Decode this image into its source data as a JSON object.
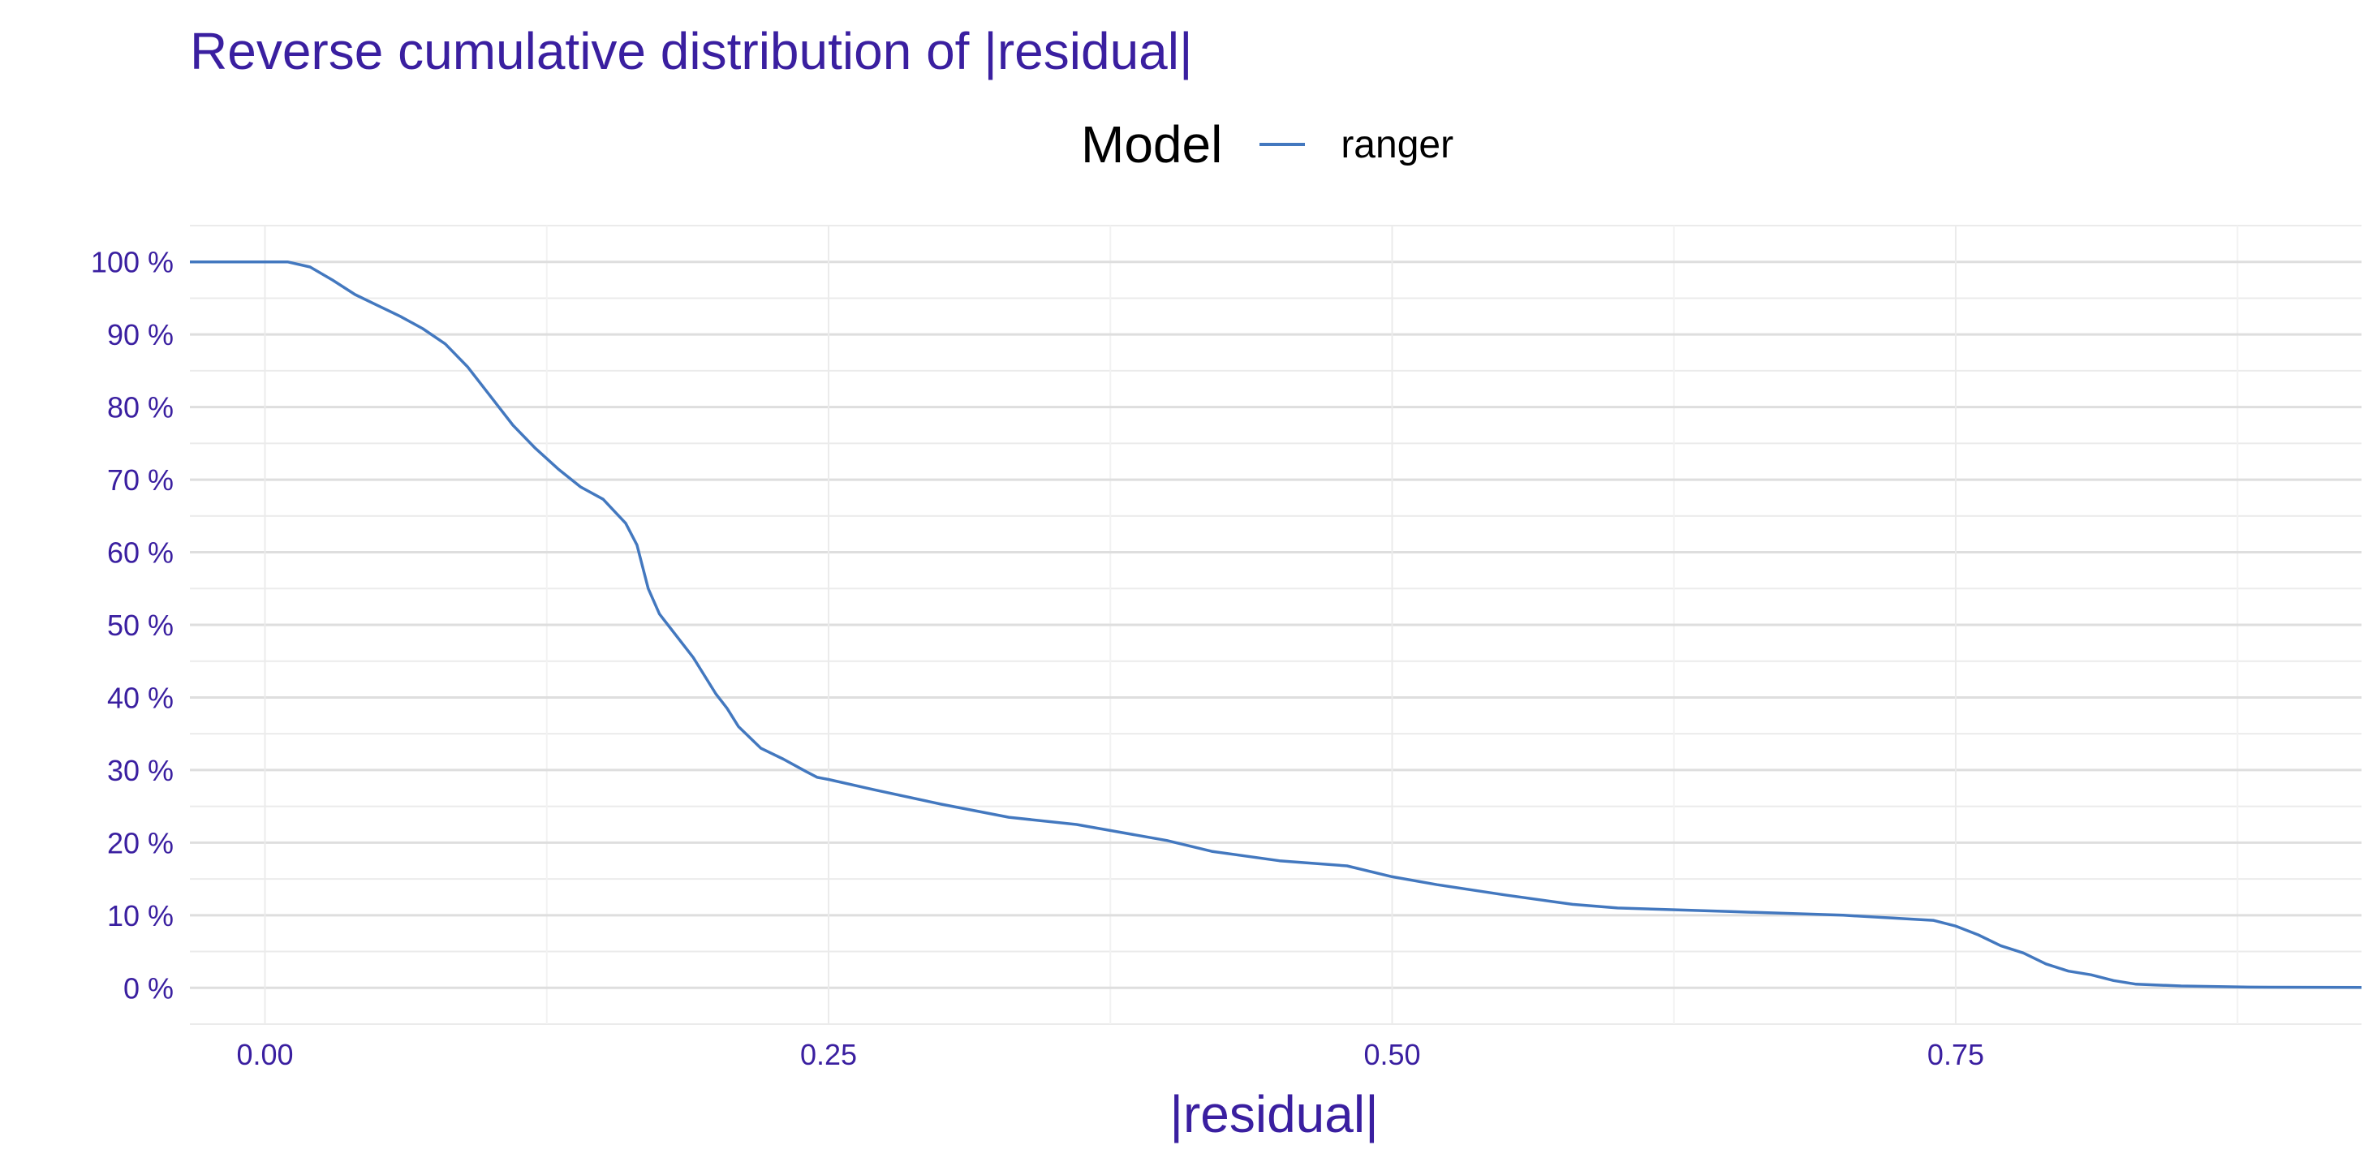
{
  "chart_data": {
    "type": "line",
    "title": "Reverse cumulative distribution of |residual|",
    "xlabel": "|residual|",
    "ylabel": "",
    "xlim": [
      -0.0333,
      0.93
    ],
    "ylim": [
      -5,
      105
    ],
    "xticks": [
      0.0,
      0.25,
      0.5,
      0.75
    ],
    "xtick_labels": [
      "0.00",
      "0.25",
      "0.50",
      "0.75"
    ],
    "yticks": [
      0,
      10,
      20,
      30,
      40,
      50,
      60,
      70,
      80,
      90,
      100
    ],
    "ytick_labels": [
      "0 %",
      "10 %",
      "20 %",
      "30 %",
      "40 %",
      "50 %",
      "60 %",
      "70 %",
      "80 %",
      "90 %",
      "100 %"
    ],
    "grid": true,
    "legend": {
      "title": "Model",
      "position": "top"
    },
    "series": [
      {
        "name": "ranger",
        "color": "#4378bf",
        "x": [
          -0.0333,
          0.0,
          0.01,
          0.02,
          0.03,
          0.04,
          0.05,
          0.06,
          0.07,
          0.08,
          0.09,
          0.1,
          0.11,
          0.12,
          0.13,
          0.14,
          0.15,
          0.16,
          0.165,
          0.17,
          0.175,
          0.18,
          0.19,
          0.2,
          0.205,
          0.21,
          0.22,
          0.23,
          0.24,
          0.245,
          0.25,
          0.27,
          0.3,
          0.33,
          0.36,
          0.4,
          0.42,
          0.45,
          0.48,
          0.5,
          0.52,
          0.55,
          0.58,
          0.6,
          0.65,
          0.7,
          0.74,
          0.75,
          0.76,
          0.77,
          0.78,
          0.79,
          0.8,
          0.81,
          0.82,
          0.83,
          0.85,
          0.88,
          0.93
        ],
        "y": [
          100,
          100,
          100,
          99.3,
          97.5,
          95.5,
          94,
          92.5,
          90.8,
          88.7,
          85.5,
          81.5,
          77.5,
          74.3,
          71.5,
          69,
          67.3,
          64,
          61,
          55,
          51.5,
          49.5,
          45.5,
          40.5,
          38.5,
          36,
          33,
          31.5,
          29.8,
          29,
          28.7,
          27.3,
          25.3,
          23.5,
          22.5,
          20.3,
          18.8,
          17.5,
          16.8,
          15.3,
          14.2,
          12.8,
          11.5,
          11,
          10.5,
          10,
          9.3,
          8.5,
          7.3,
          5.8,
          4.8,
          3.3,
          2.3,
          1.8,
          1,
          0.5,
          0.25,
          0.1,
          0.05
        ]
      }
    ]
  }
}
